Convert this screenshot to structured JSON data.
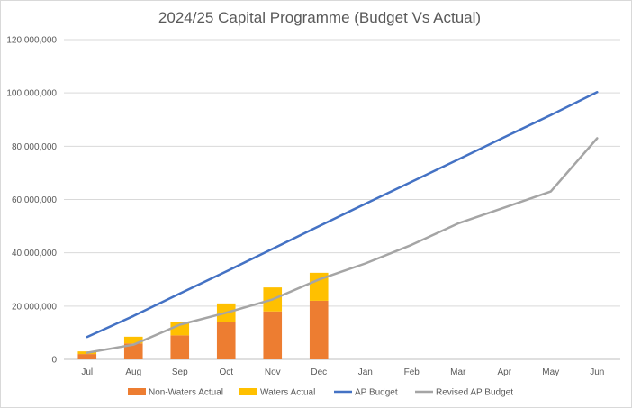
{
  "chart_data": {
    "type": "bar",
    "title": "2024/25 Capital Programme (Budget Vs Actual)",
    "xlabel": "",
    "ylabel": "",
    "categories": [
      "Jul",
      "Aug",
      "Sep",
      "Oct",
      "Nov",
      "Dec",
      "Jan",
      "Feb",
      "Mar",
      "Apr",
      "May",
      "Jun"
    ],
    "ylim": [
      0,
      120000000
    ],
    "yticks": [
      0,
      20000000,
      40000000,
      60000000,
      80000000,
      100000000,
      120000000
    ],
    "ytick_labels": [
      "0",
      "20,000,000",
      "40,000,000",
      "60,000,000",
      "80,000,000",
      "100,000,000",
      "120,000,000"
    ],
    "grid": true,
    "legend_position": "bottom",
    "series": [
      {
        "name": "Non-Waters Actual",
        "kind": "stacked-bar",
        "color": "#ED7D31",
        "values": [
          2000000,
          6000000,
          9000000,
          14000000,
          18000000,
          22000000,
          null,
          null,
          null,
          null,
          null,
          null
        ]
      },
      {
        "name": "Waters Actual",
        "kind": "stacked-bar",
        "color": "#FFC000",
        "values": [
          1000000,
          2500000,
          5000000,
          7000000,
          9000000,
          10500000,
          null,
          null,
          null,
          null,
          null,
          null
        ]
      },
      {
        "name": "AP Budget",
        "kind": "line",
        "color": "#4472C4",
        "values": [
          8400000,
          16300000,
          24700000,
          33000000,
          41500000,
          50000000,
          58400000,
          66700000,
          75000000,
          83400000,
          91700000,
          100300000
        ]
      },
      {
        "name": "Revised AP Budget",
        "kind": "line",
        "color": "#A5A5A5",
        "values": [
          2500000,
          5500000,
          13000000,
          17500000,
          22500000,
          30000000,
          36000000,
          43000000,
          51000000,
          57000000,
          63000000,
          83000000
        ]
      }
    ]
  }
}
